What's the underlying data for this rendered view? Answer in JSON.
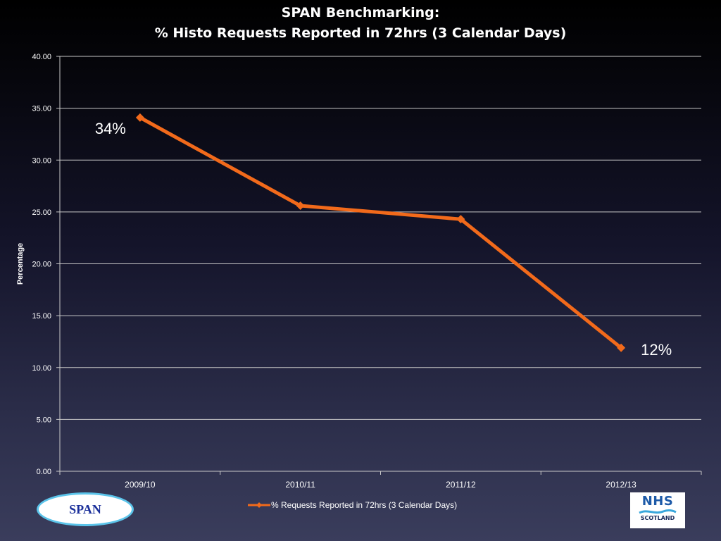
{
  "slide": {
    "title_line1": "SPAN Benchmarking:",
    "title_line2": "% Histo Requests Reported in 72hrs (3 Calendar Days)"
  },
  "logos": {
    "span_text": "SPAN",
    "nhs_text": "NHS",
    "nhs_subtext": "SCOTLAND"
  },
  "colors": {
    "series": "#f26a1b",
    "gridline": "#c8c8c8",
    "text": "#ffffff"
  },
  "chart_data": {
    "type": "line",
    "title": "SPAN Benchmarking: % Histo Requests Reported in 72hrs (3 Calendar Days)",
    "categories": [
      "2009/10",
      "2010/11",
      "2011/12",
      "2012/13"
    ],
    "series": [
      {
        "name": "% Requests Reported in 72hrs (3 Calendar Days)",
        "values": [
          34.1,
          25.6,
          24.3,
          11.9
        ]
      }
    ],
    "xlabel": "",
    "ylabel": "Percentage",
    "ylim": [
      0,
      40
    ],
    "yticks": [
      "0.00",
      "5.00",
      "10.00",
      "15.00",
      "20.00",
      "25.00",
      "30.00",
      "35.00",
      "40.00"
    ],
    "grid": true,
    "legend": "bottom",
    "annotations": [
      {
        "text": "34%",
        "category": "2009/10"
      },
      {
        "text": "12%",
        "category": "2012/13"
      }
    ]
  }
}
